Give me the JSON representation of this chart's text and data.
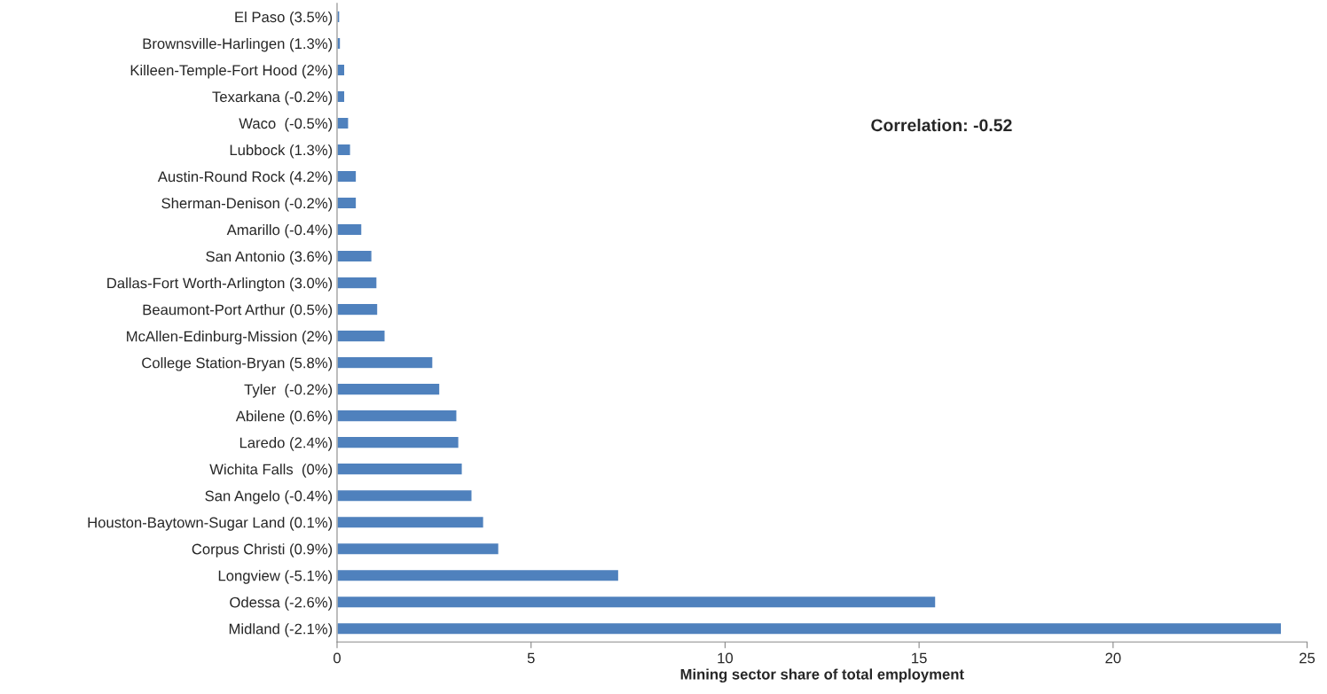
{
  "chart_data": {
    "type": "bar",
    "orientation": "horizontal",
    "xlabel": "Mining sector share of total employment",
    "categories": [
      "El Paso (3.5%)",
      "Brownsville-Harlingen (1.3%)",
      "Killeen-Temple-Fort Hood (2%)",
      "Texarkana (-0.2%)",
      "Waco  (-0.5%)",
      "Lubbock (1.3%)",
      "Austin-Round Rock (4.2%)",
      "Sherman-Denison (-0.2%)",
      "Amarillo (-0.4%)",
      "San Antonio (3.6%)",
      "Dallas-Fort Worth-Arlington (3.0%)",
      "Beaumont-Port Arthur (0.5%)",
      "McAllen-Edinburg-Mission (2%)",
      "College Station-Bryan (5.8%)",
      "Tyler  (-0.2%)",
      "Abilene (0.6%)",
      "Laredo (2.4%)",
      "Wichita Falls  (0%)",
      "San Angelo (-0.4%)",
      "Houston-Baytown-Sugar Land (0.1%)",
      "Corpus Christi (0.9%)",
      "Longview (-5.1%)",
      "Odessa (-2.6%)",
      "Midland (-2.1%)"
    ],
    "values": [
      0.07,
      0.09,
      0.2,
      0.2,
      0.3,
      0.35,
      0.5,
      0.5,
      0.64,
      0.9,
      1.03,
      1.05,
      1.24,
      2.47,
      2.65,
      3.09,
      3.14,
      3.23,
      3.48,
      3.78,
      4.17,
      7.26,
      15.43,
      24.34
    ],
    "color": "#4f81bd",
    "xlim": [
      0,
      25
    ],
    "xticks": [
      0,
      5,
      10,
      15,
      20,
      25
    ],
    "grid": false,
    "legend": false,
    "annotations": [
      "Correlation: -0.52"
    ]
  }
}
